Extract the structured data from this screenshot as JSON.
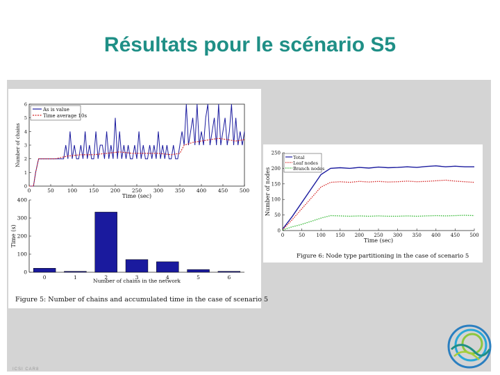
{
  "slide": {
    "title": "Résultats pour le scénario S5",
    "footer_text": "ICSI CAR8"
  },
  "colors": {
    "title": "#1f8f86",
    "panel": "#d4d4d4",
    "navy": "#1a1a9e",
    "red": "#d42020",
    "green": "#2bb52b"
  },
  "chart_data": [
    {
      "type": "line",
      "ylabel": "Number of chains",
      "xlabel": "Time (sec)",
      "xlim": [
        0,
        500
      ],
      "ylim": [
        0,
        6
      ],
      "xticks": [
        "0",
        "50",
        "100",
        "150",
        "200",
        "250",
        "300",
        "350",
        "400",
        "450",
        "500"
      ],
      "yticks": [
        "0",
        "1",
        "2",
        "3",
        "4",
        "5",
        "6"
      ],
      "legend": "top-left",
      "series": [
        {
          "name": "As is value",
          "x": [
            0,
            10,
            15,
            22,
            30,
            45,
            60,
            80,
            85,
            90,
            95,
            100,
            105,
            110,
            115,
            120,
            125,
            130,
            135,
            140,
            145,
            150,
            155,
            160,
            165,
            170,
            175,
            180,
            185,
            190,
            195,
            200,
            205,
            210,
            215,
            220,
            225,
            230,
            235,
            240,
            245,
            250,
            255,
            260,
            265,
            270,
            275,
            280,
            285,
            290,
            295,
            300,
            305,
            310,
            315,
            320,
            325,
            330,
            335,
            340,
            345,
            350,
            355,
            360,
            365,
            370,
            375,
            380,
            385,
            390,
            395,
            400,
            405,
            410,
            415,
            420,
            425,
            430,
            435,
            440,
            445,
            450,
            455,
            460,
            465,
            470,
            475,
            480,
            485,
            490,
            495,
            500
          ],
          "y": [
            0,
            0,
            1,
            2,
            2,
            2,
            2,
            2,
            3,
            2,
            4,
            2,
            3,
            2,
            2,
            3,
            2,
            4,
            2,
            3,
            2,
            2,
            4,
            2,
            3,
            3,
            2,
            4,
            2,
            3,
            2,
            5,
            2,
            4,
            2,
            3,
            2,
            3,
            2,
            2,
            3,
            2,
            4,
            2,
            3,
            2,
            2,
            3,
            2,
            3,
            2,
            4,
            2,
            3,
            2,
            3,
            2,
            2,
            3,
            2,
            2,
            3,
            4,
            3,
            6,
            3,
            4,
            5,
            3,
            6,
            3,
            4,
            3,
            5,
            6,
            3,
            4,
            5,
            3,
            6,
            3,
            4,
            5,
            3,
            4,
            6,
            3,
            5,
            3,
            4,
            3,
            4
          ]
        },
        {
          "name": "Time average 10s",
          "x": [
            0,
            10,
            15,
            22,
            30,
            60,
            90,
            120,
            150,
            180,
            210,
            240,
            270,
            300,
            330,
            350,
            360,
            380,
            400,
            420,
            440,
            460,
            480,
            500
          ],
          "y": [
            0,
            0,
            1,
            2,
            2,
            2,
            2.2,
            2.3,
            2.3,
            2.4,
            2.5,
            2.4,
            2.4,
            2.4,
            2.3,
            2.4,
            3,
            3.2,
            3.3,
            3.4,
            3.5,
            3.4,
            3.3,
            3.4
          ]
        }
      ]
    },
    {
      "type": "bar",
      "ylabel": "Time (s)",
      "xlabel": "Number of chains in the network",
      "categories": [
        "0",
        "1",
        "2",
        "3",
        "4",
        "5",
        "6"
      ],
      "values": [
        22,
        5,
        333,
        70,
        58,
        15,
        5
      ],
      "ylim": [
        0,
        400
      ],
      "yticks": [
        "0",
        "100",
        "200",
        "300",
        "400"
      ],
      "caption": "Figure 5: Number of chains and accumulated time in the case of scenario 5"
    },
    {
      "type": "line",
      "ylabel": "Number of nodes",
      "xlabel": "Time (sec)",
      "xlim": [
        0,
        500
      ],
      "ylim": [
        0,
        250
      ],
      "xticks": [
        "0",
        "50",
        "100",
        "150",
        "200",
        "250",
        "300",
        "350",
        "400",
        "450",
        "500"
      ],
      "yticks": [
        "0",
        "50",
        "100",
        "150",
        "200",
        "250"
      ],
      "legend": "top-left",
      "caption": "Figure 6: Node type partitioning in the case of scenario 5",
      "series": [
        {
          "name": "Total",
          "x": [
            0,
            25,
            50,
            75,
            100,
            125,
            150,
            175,
            200,
            225,
            250,
            275,
            300,
            325,
            350,
            375,
            400,
            425,
            450,
            475,
            500
          ],
          "y": [
            5,
            45,
            90,
            135,
            180,
            200,
            202,
            200,
            203,
            201,
            204,
            202,
            203,
            205,
            203,
            206,
            208,
            205,
            207,
            205,
            205
          ]
        },
        {
          "name": "Leaf nodes",
          "x": [
            0,
            25,
            50,
            75,
            100,
            125,
            150,
            175,
            200,
            225,
            250,
            275,
            300,
            325,
            350,
            375,
            400,
            425,
            450,
            475,
            500
          ],
          "y": [
            3,
            35,
            70,
            105,
            140,
            155,
            157,
            155,
            158,
            156,
            158,
            156,
            157,
            159,
            157,
            158,
            160,
            162,
            159,
            157,
            155
          ]
        },
        {
          "name": "Branch nodes",
          "x": [
            0,
            25,
            50,
            75,
            100,
            125,
            150,
            175,
            200,
            225,
            250,
            275,
            300,
            325,
            350,
            375,
            400,
            425,
            450,
            475,
            500
          ],
          "y": [
            2,
            12,
            20,
            30,
            40,
            48,
            47,
            46,
            47,
            46,
            47,
            46,
            46,
            47,
            46,
            47,
            48,
            47,
            48,
            49,
            48
          ]
        }
      ]
    }
  ]
}
